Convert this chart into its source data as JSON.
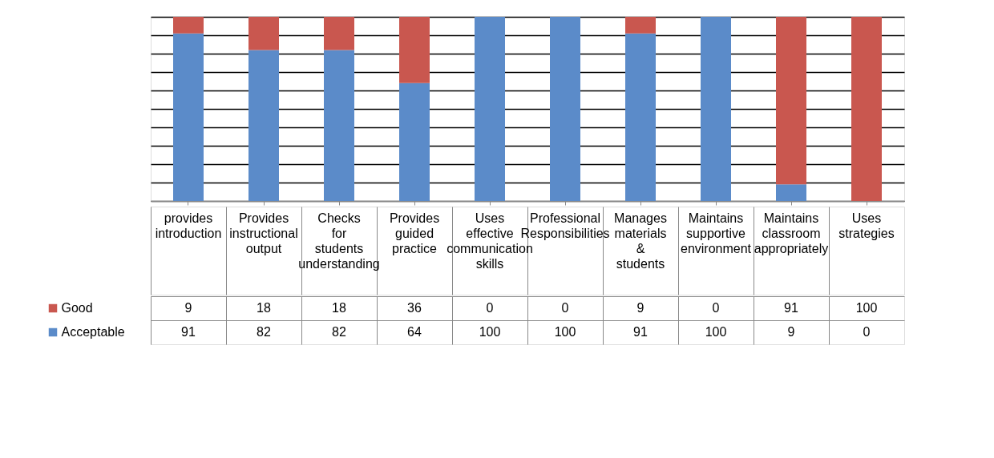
{
  "chart_data": {
    "type": "bar",
    "stacked": true,
    "categories": [
      "provides introduction",
      "Provides instructional output",
      "Checks for students understanding",
      "Provides guided practice",
      "Uses effective communication skills",
      "Professional Responsibilities",
      "Manages materials & students",
      "Maintains supportive environment",
      "Maintains classroom appropriately",
      "Uses strategies"
    ],
    "series": [
      {
        "name": "Acceptable",
        "color": "#5b8bc9",
        "values": [
          91,
          82,
          82,
          64,
          100,
          100,
          91,
          100,
          9,
          0
        ]
      },
      {
        "name": "Good",
        "color": "#c9574f",
        "values": [
          9,
          18,
          18,
          36,
          0,
          0,
          9,
          0,
          91,
          100
        ]
      }
    ],
    "ylim": [
      0,
      100
    ],
    "yticks": [
      {
        "value": 0,
        "label": null
      },
      {
        "value": 10,
        "label": null
      },
      {
        "value": 20,
        "label": null
      },
      {
        "value": 30,
        "label": null
      },
      {
        "value": 40,
        "label": null
      },
      {
        "value": 50,
        "label": null
      },
      {
        "value": 60,
        "label": null
      },
      {
        "value": 70,
        "label": null
      },
      {
        "value": 80,
        "label": null
      },
      {
        "value": 90,
        "label": null
      },
      {
        "value": 100,
        "label": null
      }
    ],
    "grid": "y",
    "tick_labels": "x",
    "data_labels": true,
    "legend": "bottom left"
  }
}
